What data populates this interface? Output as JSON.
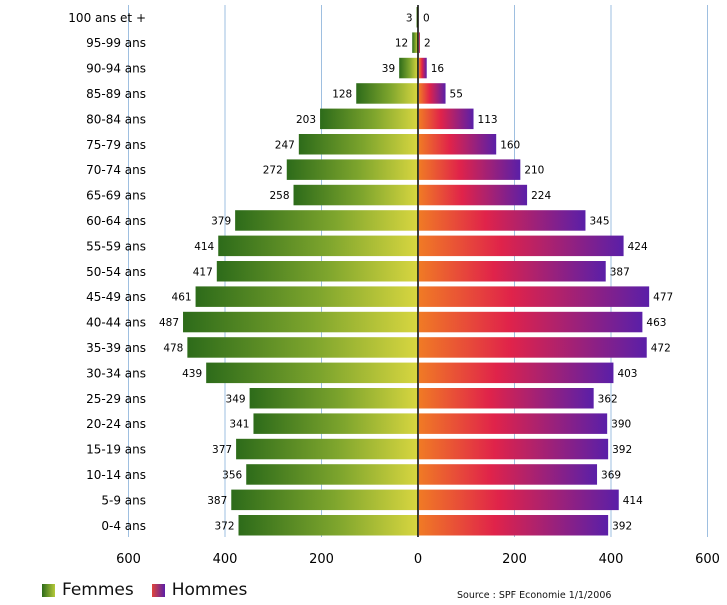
{
  "chart_data": {
    "type": "bar",
    "orientation": "horizontal",
    "subtype": "population-pyramid",
    "categories": [
      "100 ans et +",
      "95-99 ans",
      "90-94 ans",
      "85-89 ans",
      "80-84 ans",
      "75-79 ans",
      "70-74 ans",
      "65-69 ans",
      "60-64 ans",
      "55-59 ans",
      "50-54 ans",
      "45-49 ans",
      "40-44 ans",
      "35-39 ans",
      "30-34 ans",
      "25-29 ans",
      "20-24 ans",
      "15-19 ans",
      "10-14 ans",
      "5-9 ans",
      "0-4 ans"
    ],
    "category_labels": [
      "100 ans et +",
      "95-99 ans",
      "90-94 ans",
      "85-89 ans",
      "80-84 ans",
      "75-79 ans",
      "70-74 ans",
      "65-69 ans",
      "60-64 ans",
      "55-59 ans",
      "50-54 ans",
      "45-49 ans",
      "40-44 ans",
      "35-39 ans",
      "30-34 ans",
      "25-29 ans",
      "20-24 ans",
      "15-19 ans",
      "10-14 ans",
      "5-9 ans",
      "0-4 ans"
    ],
    "series": [
      {
        "name": "Femmes",
        "side": "left",
        "color_dark": "#2d6b1a",
        "color_light": "#c8d43c",
        "values": [
          3,
          12,
          39,
          128,
          203,
          247,
          272,
          258,
          379,
          414,
          417,
          461,
          487,
          478,
          439,
          349,
          341,
          377,
          356,
          387,
          372
        ],
        "labels": [
          "3",
          "12",
          "39",
          "128",
          "203",
          "247",
          "272",
          "258",
          "379",
          "414",
          "417",
          "461",
          "487",
          "478",
          "439",
          "349",
          "341",
          "377",
          "356",
          "387",
          "372"
        ]
      },
      {
        "name": "Hommes",
        "side": "right",
        "color_light": "#f07a25",
        "color_mid": "#e0234a",
        "color_dark": "#5a1fa8",
        "values": [
          0,
          2,
          16,
          55,
          113,
          160,
          210,
          224,
          345,
          424,
          387,
          477,
          463,
          472,
          403,
          362,
          390,
          392,
          369,
          414,
          392
        ],
        "labels": [
          "0",
          "2",
          "16",
          "55",
          "113",
          "160",
          "210",
          "224",
          "345",
          "424",
          "387",
          "477",
          "463",
          "472",
          "403",
          "362",
          "390",
          "392",
          "369",
          "414",
          "392"
        ]
      }
    ],
    "x_ticks": [
      "600",
      "400",
      "200",
      "0",
      "200",
      "400",
      "600"
    ],
    "x_tick_values": [
      -600,
      -400,
      -200,
      0,
      200,
      400,
      600
    ],
    "xlim": [
      -600,
      600
    ],
    "grid": true,
    "grid_color": "#9ebfe0",
    "legend_position": "bottom-left",
    "source": "Source : SPF Economie 1/1/2006",
    "title": "",
    "xlabel": "",
    "ylabel": ""
  },
  "legend": {
    "femmes": "Femmes",
    "hommes": "Hommes"
  }
}
